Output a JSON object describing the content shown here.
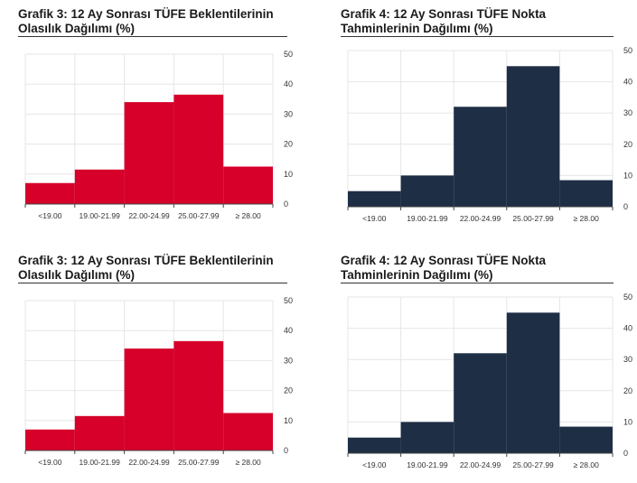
{
  "chart_data": [
    {
      "type": "bar",
      "title_line1": "Grafik 3: 12 Ay Sonrası TÜFE Beklentilerinin",
      "title_line2": "Olasılık Dağılımı (%)",
      "categories": [
        "<19.00",
        "19.00-21.99",
        "22.00-24.99",
        "25.00-27.99",
        "≥ 28.00"
      ],
      "values": [
        7,
        11.5,
        34,
        36.5,
        12.5
      ],
      "ylim": [
        0,
        50
      ],
      "yticks": [
        0,
        10,
        20,
        30,
        40,
        50
      ],
      "color": "#d6002b",
      "grid": true,
      "y_axis_side": "right"
    },
    {
      "type": "bar",
      "title_line1": "Grafik 4: 12 Ay Sonrası TÜFE Nokta",
      "title_line2": "Tahminlerinin Dağılımı (%)",
      "categories": [
        "<19.00",
        "19.00-21.99",
        "22.00-24.99",
        "25.00-27.99",
        "≥ 28.00"
      ],
      "values": [
        5,
        10,
        32,
        45,
        8.5
      ],
      "ylim": [
        0,
        50
      ],
      "yticks": [
        0,
        10,
        20,
        30,
        40,
        50
      ],
      "color": "#1e2e45",
      "grid": true,
      "y_axis_side": "right"
    },
    {
      "type": "bar",
      "title_line1": "Grafik 3: 12 Ay Sonrası TÜFE Beklentilerinin",
      "title_line2": "Olasılık Dağılımı (%)",
      "categories": [
        "<19.00",
        "19.00-21.99",
        "22.00-24.99",
        "25.00-27.99",
        "≥ 28.00"
      ],
      "values": [
        7,
        11.5,
        34,
        36.5,
        12.5
      ],
      "ylim": [
        0,
        50
      ],
      "yticks": [
        0,
        10,
        20,
        30,
        40,
        50
      ],
      "color": "#d6002b",
      "grid": true,
      "y_axis_side": "right"
    },
    {
      "type": "bar",
      "title_line1": "Grafik 4: 12 Ay Sonrası TÜFE Nokta",
      "title_line2": "Tahminlerinin Dağılımı (%)",
      "categories": [
        "<19.00",
        "19.00-21.99",
        "22.00-24.99",
        "25.00-27.99",
        "≥ 28.00"
      ],
      "values": [
        5,
        10,
        32,
        45,
        8.5
      ],
      "ylim": [
        0,
        50
      ],
      "yticks": [
        0,
        10,
        20,
        30,
        40,
        50
      ],
      "color": "#1e2e45",
      "grid": true,
      "y_axis_side": "right"
    }
  ]
}
